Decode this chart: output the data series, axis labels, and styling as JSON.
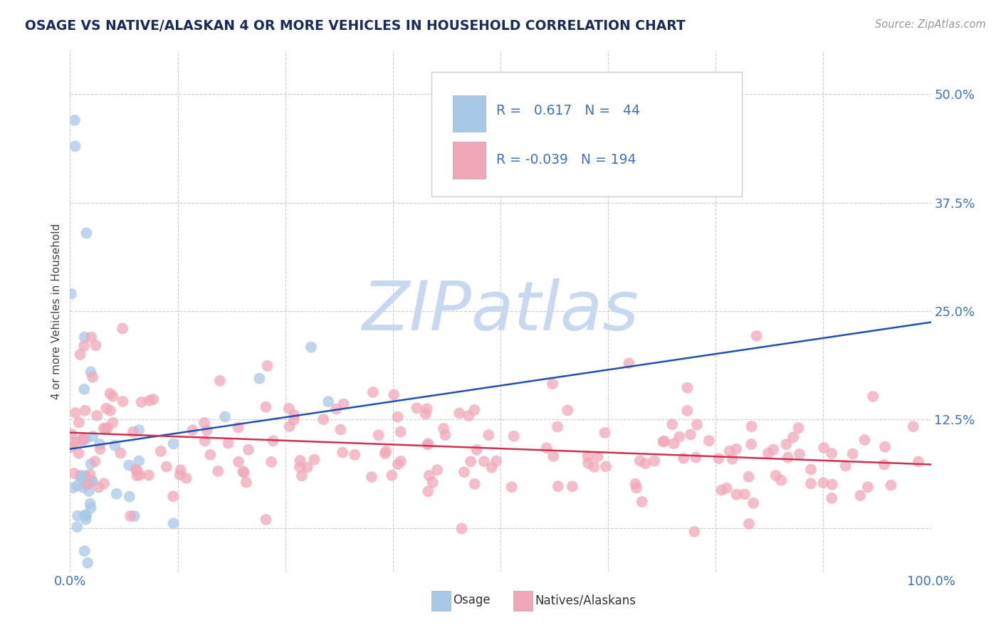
{
  "title": "OSAGE VS NATIVE/ALASKAN 4 OR MORE VEHICLES IN HOUSEHOLD CORRELATION CHART",
  "source_text": "Source: ZipAtlas.com",
  "ylabel": "4 or more Vehicles in Household",
  "xlim": [
    0.0,
    1.0
  ],
  "ylim": [
    -0.05,
    0.55
  ],
  "xticks": [
    0.0,
    0.125,
    0.25,
    0.375,
    0.5,
    0.625,
    0.75,
    0.875,
    1.0
  ],
  "xticklabels": [
    "0.0%",
    "",
    "",
    "",
    "",
    "",
    "",
    "",
    "100.0%"
  ],
  "ytick_positions": [
    0.0,
    0.125,
    0.25,
    0.375,
    0.5
  ],
  "yticklabels": [
    "",
    "12.5%",
    "25.0%",
    "37.5%",
    "50.0%"
  ],
  "grid_color": "#cccccc",
  "background_color": "#ffffff",
  "osage_color": "#a8c8e8",
  "native_color": "#f0a8b8",
  "osage_line_color": "#2050b0",
  "native_line_color": "#d03050",
  "osage_R": 0.617,
  "osage_N": 44,
  "native_R": -0.039,
  "native_N": 194,
  "watermark_color": "#c8d8f0",
  "tick_color": "#4070c0",
  "title_color": "#1a2a5a",
  "source_color": "#999999"
}
